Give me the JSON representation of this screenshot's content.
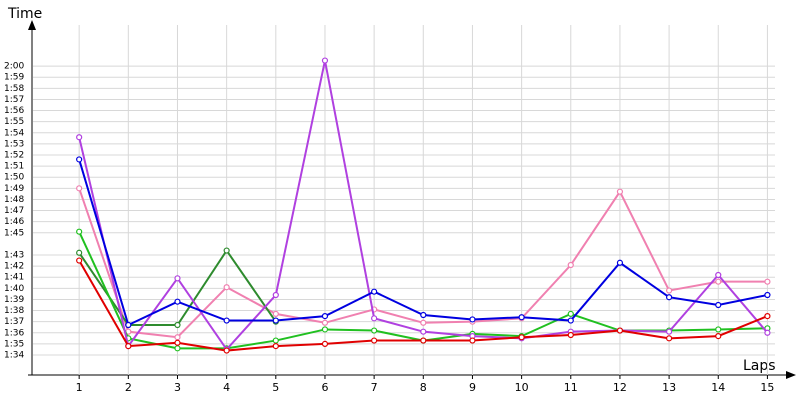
{
  "chart_data": {
    "type": "line",
    "y_label": "Time",
    "x_label": "Laps",
    "x": [
      1,
      2,
      3,
      4,
      5,
      6,
      7,
      8,
      9,
      10,
      11,
      12,
      13,
      14,
      15
    ],
    "xlim": [
      0,
      15.5
    ],
    "xticks": [
      1,
      2,
      3,
      4,
      5,
      6,
      7,
      8,
      9,
      10,
      11,
      12,
      13,
      14,
      15
    ],
    "ylim": [
      92.2,
      123.7
    ],
    "yticks": [
      {
        "value": 94,
        "label": "1:34"
      },
      {
        "value": 95,
        "label": "1:35"
      },
      {
        "value": 96,
        "label": "1:36"
      },
      {
        "value": 97,
        "label": "1:37"
      },
      {
        "value": 98,
        "label": "1:38"
      },
      {
        "value": 99,
        "label": "1:39"
      },
      {
        "value": 100,
        "label": "1:40"
      },
      {
        "value": 101,
        "label": "1:41"
      },
      {
        "value": 102,
        "label": "1:42"
      },
      {
        "value": 103,
        "label": "1:43"
      },
      {
        "value": 105,
        "label": "1:45"
      },
      {
        "value": 106,
        "label": "1:46"
      },
      {
        "value": 107,
        "label": "1:47"
      },
      {
        "value": 108,
        "label": "1:48"
      },
      {
        "value": 109,
        "label": "1:49"
      },
      {
        "value": 110,
        "label": "1:50"
      },
      {
        "value": 111,
        "label": "1:51"
      },
      {
        "value": 112,
        "label": "1:52"
      },
      {
        "value": 113,
        "label": "1:53"
      },
      {
        "value": 114,
        "label": "1:54"
      },
      {
        "value": 115,
        "label": "1:55"
      },
      {
        "value": 116,
        "label": "1:56"
      },
      {
        "value": 117,
        "label": "1:57"
      },
      {
        "value": 118,
        "label": "1:58"
      },
      {
        "value": 119,
        "label": "1:59"
      },
      {
        "value": 120,
        "label": "2:00"
      }
    ],
    "grid": true,
    "series": [
      {
        "color": "#f080b0",
        "values": [
          109.0,
          96.1,
          95.6,
          100.1,
          97.7,
          96.9,
          98.1,
          96.9,
          97.0,
          97.3,
          102.1,
          108.7,
          99.8,
          100.6,
          100.6
        ]
      },
      {
        "color": "#2e8b2e",
        "values": [
          103.2,
          96.7,
          96.7,
          103.4,
          97.0,
          null,
          null,
          null,
          null,
          null,
          null,
          null,
          null,
          null,
          null
        ]
      },
      {
        "color": "#20c020",
        "values": [
          105.1,
          95.5,
          94.6,
          94.6,
          95.3,
          96.3,
          96.2,
          95.3,
          95.9,
          95.7,
          97.7,
          96.2,
          96.2,
          96.3,
          96.4
        ]
      },
      {
        "color": "#b040e0",
        "values": [
          113.6,
          94.8,
          100.9,
          94.5,
          99.4,
          120.5,
          97.3,
          96.1,
          95.7,
          95.5,
          96.1,
          96.2,
          96.1,
          101.2,
          96.0
        ]
      },
      {
        "color": "#0000e0",
        "values": [
          111.6,
          96.7,
          98.8,
          97.1,
          97.1,
          97.5,
          99.7,
          97.6,
          97.2,
          97.4,
          97.1,
          102.3,
          99.2,
          98.5,
          99.4
        ]
      },
      {
        "color": "#e00000",
        "values": [
          102.5,
          94.8,
          95.1,
          94.4,
          94.8,
          95.0,
          95.3,
          95.3,
          95.3,
          95.6,
          95.8,
          96.2,
          95.5,
          95.7,
          97.5
        ]
      }
    ]
  }
}
